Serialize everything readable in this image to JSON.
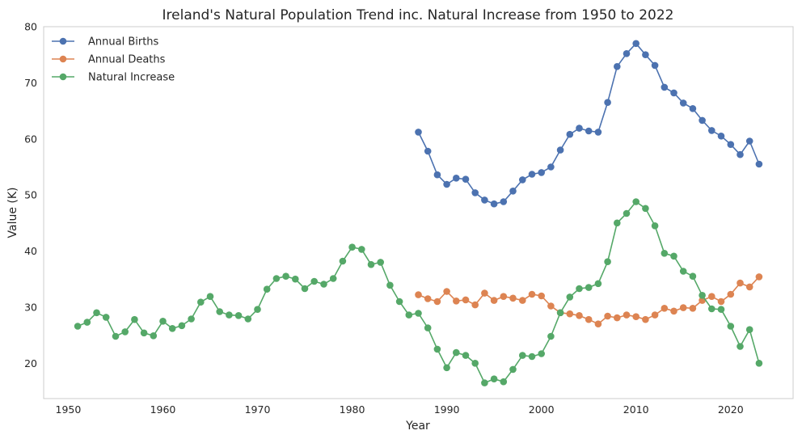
{
  "chart_data": {
    "type": "line",
    "title": "Ireland's Natural Population Trend inc. Natural Increase from 1950 to 2022",
    "xlabel": "Year",
    "ylabel": "Value (K)",
    "xlim": [
      1947.4,
      2026.6
    ],
    "ylim": [
      13.7,
      80
    ],
    "xticks": [
      1950,
      1960,
      1970,
      1980,
      1990,
      2000,
      2010,
      2020
    ],
    "yticks": [
      20,
      30,
      40,
      50,
      60,
      70,
      80
    ],
    "grid": false,
    "legend_position": "top-left",
    "series": [
      {
        "name": "Annual Births",
        "color": "#4c72b0",
        "x": [
          1987,
          1988,
          1989,
          1990,
          1991,
          1992,
          1993,
          1994,
          1995,
          1996,
          1997,
          1998,
          1999,
          2000,
          2001,
          2002,
          2003,
          2004,
          2005,
          2006,
          2007,
          2008,
          2009,
          2010,
          2011,
          2012,
          2013,
          2014,
          2015,
          2016,
          2017,
          2018,
          2019,
          2020,
          2021,
          2022,
          2023
        ],
        "y": [
          61.2,
          57.8,
          53.6,
          51.9,
          53.0,
          52.8,
          50.4,
          49.1,
          48.4,
          48.8,
          50.7,
          52.7,
          53.7,
          54.0,
          55.0,
          58.0,
          60.8,
          61.9,
          61.4,
          61.2,
          66.5,
          72.9,
          75.2,
          77.0,
          75.0,
          73.1,
          69.2,
          68.2,
          66.4,
          65.4,
          63.3,
          61.5,
          60.5,
          59.0,
          57.2,
          59.6,
          55.5
        ]
      },
      {
        "name": "Annual Deaths",
        "color": "#dd8452",
        "x": [
          1987,
          1988,
          1989,
          1990,
          1991,
          1992,
          1993,
          1994,
          1995,
          1996,
          1997,
          1998,
          1999,
          2000,
          2001,
          2002,
          2003,
          2004,
          2005,
          2006,
          2007,
          2008,
          2009,
          2010,
          2011,
          2012,
          2013,
          2014,
          2015,
          2016,
          2017,
          2018,
          2019,
          2020,
          2021,
          2022,
          2023
        ],
        "y": [
          32.2,
          31.5,
          31.0,
          32.8,
          31.1,
          31.3,
          30.4,
          32.5,
          31.2,
          31.9,
          31.6,
          31.2,
          32.3,
          32.0,
          30.2,
          29.0,
          28.8,
          28.5,
          27.8,
          27.0,
          28.4,
          28.1,
          28.6,
          28.3,
          27.8,
          28.6,
          29.8,
          29.3,
          29.9,
          29.8,
          31.2,
          31.9,
          31.0,
          32.3,
          34.3,
          33.6,
          35.4
        ]
      },
      {
        "name": "Natural Increase",
        "color": "#55a868",
        "x": [
          1951,
          1952,
          1953,
          1954,
          1955,
          1956,
          1957,
          1958,
          1959,
          1960,
          1961,
          1962,
          1963,
          1964,
          1965,
          1966,
          1967,
          1968,
          1969,
          1970,
          1971,
          1972,
          1973,
          1974,
          1975,
          1976,
          1977,
          1978,
          1979,
          1980,
          1981,
          1982,
          1983,
          1984,
          1985,
          1986,
          1987,
          1988,
          1989,
          1990,
          1991,
          1992,
          1993,
          1994,
          1995,
          1996,
          1997,
          1998,
          1999,
          2000,
          2001,
          2002,
          2003,
          2004,
          2005,
          2006,
          2007,
          2008,
          2009,
          2010,
          2011,
          2012,
          2013,
          2014,
          2015,
          2016,
          2017,
          2018,
          2019,
          2020,
          2021,
          2022,
          2023
        ],
        "y": [
          26.6,
          27.3,
          29.0,
          28.2,
          24.8,
          25.6,
          27.8,
          25.4,
          24.9,
          27.5,
          26.2,
          26.7,
          27.9,
          30.9,
          31.9,
          29.2,
          28.6,
          28.5,
          27.9,
          29.6,
          33.2,
          35.1,
          35.5,
          35.0,
          33.3,
          34.6,
          34.1,
          35.1,
          38.2,
          40.7,
          40.3,
          37.6,
          38.0,
          33.9,
          31.0,
          28.6,
          28.9,
          26.3,
          22.5,
          19.2,
          21.9,
          21.4,
          20.0,
          16.5,
          17.2,
          16.7,
          18.9,
          21.4,
          21.2,
          21.7,
          24.8,
          29.0,
          31.8,
          33.3,
          33.5,
          34.2,
          38.1,
          45.0,
          46.7,
          48.8,
          47.6,
          44.5,
          39.6,
          39.1,
          36.4,
          35.5,
          32.1,
          29.7,
          29.6,
          26.6,
          23.0,
          26.0,
          20.0
        ]
      }
    ]
  }
}
